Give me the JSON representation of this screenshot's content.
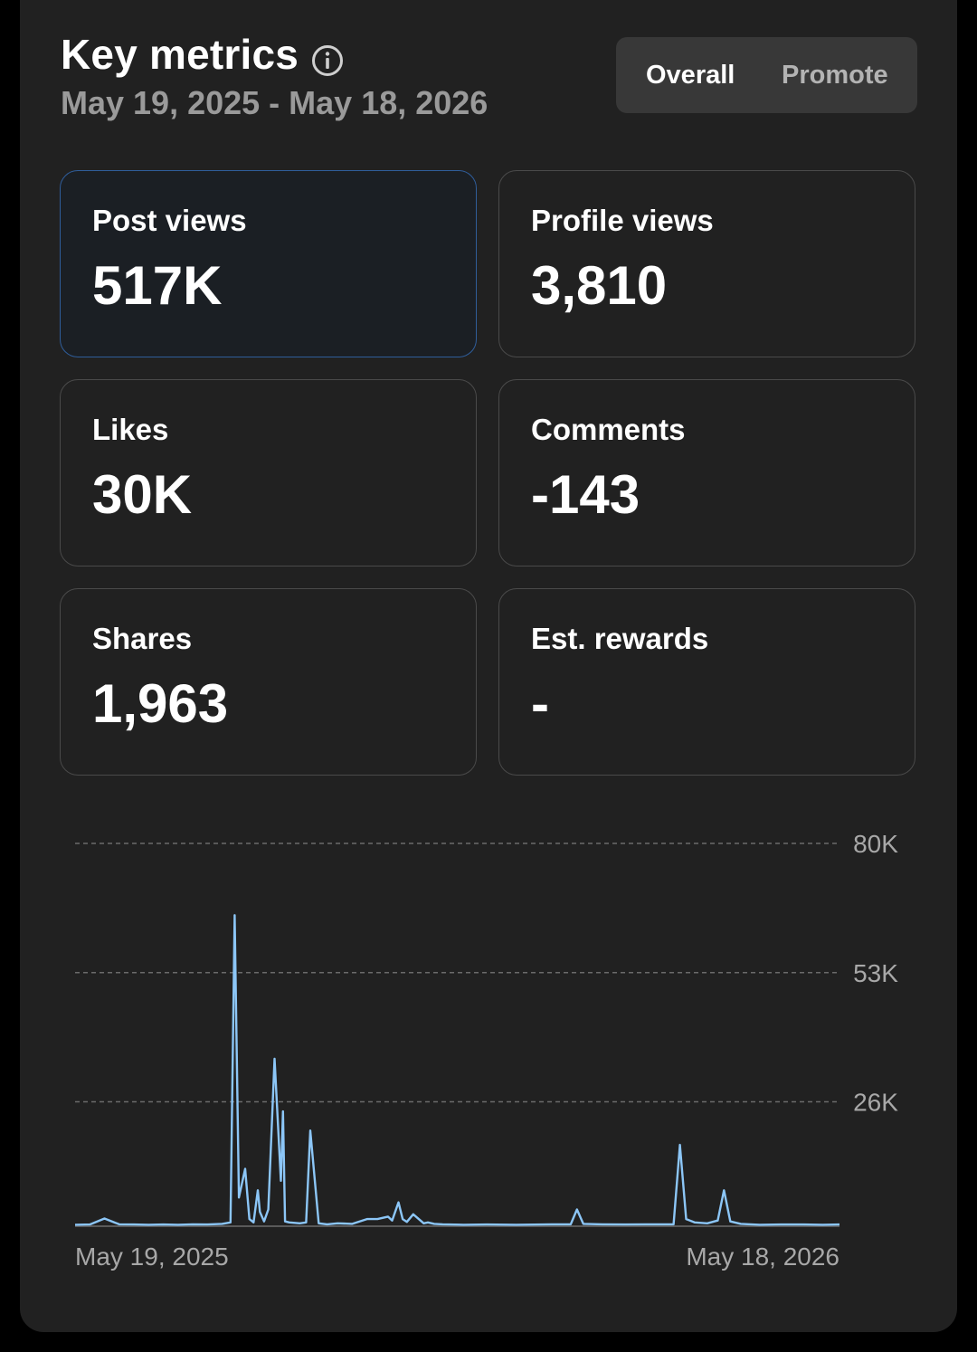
{
  "header": {
    "title": "Key metrics",
    "date_range": "May 19, 2025 - May 18, 2026"
  },
  "toggle": {
    "overall_label": "Overall",
    "promote_label": "Promote",
    "selected": "Overall"
  },
  "metrics": [
    {
      "label": "Post views",
      "value": "517K",
      "selected": true
    },
    {
      "label": "Profile views",
      "value": "3,810",
      "selected": false
    },
    {
      "label": "Likes",
      "value": "30K",
      "selected": false
    },
    {
      "label": "Comments",
      "value": "-143",
      "selected": false
    },
    {
      "label": "Shares",
      "value": "1,963",
      "selected": false
    },
    {
      "label": "Est. rewards",
      "value": "-",
      "selected": false
    }
  ],
  "colors": {
    "background": "#212121",
    "line": "#8cc6f7",
    "selected_border": "#2f5d9a",
    "muted_text": "#9a9a9a"
  },
  "chart_data": {
    "type": "line",
    "y_ticks": [
      "80K",
      "53K",
      "26K"
    ],
    "x_ticks": [
      "May 19, 2025",
      "May 18, 2026"
    ],
    "ylim": [
      0,
      80000
    ],
    "grid": true,
    "series": [
      {
        "x": [
          "2025-05-19",
          "2025-05-26",
          "2025-06-02",
          "2025-06-09",
          "2025-06-16",
          "2025-06-23",
          "2025-06-30",
          "2025-07-07",
          "2025-07-14",
          "2025-07-21",
          "2025-07-28",
          "2025-08-01",
          "2025-08-03",
          "2025-08-05",
          "2025-08-08",
          "2025-08-10",
          "2025-08-12",
          "2025-08-14",
          "2025-08-15",
          "2025-08-17",
          "2025-08-19",
          "2025-08-22",
          "2025-08-25",
          "2025-08-26",
          "2025-08-27",
          "2025-08-29",
          "2025-09-03",
          "2025-09-06",
          "2025-09-08",
          "2025-09-12",
          "2025-09-16",
          "2025-09-21",
          "2025-09-28",
          "2025-10-05",
          "2025-10-10",
          "2025-10-15",
          "2025-10-17",
          "2025-10-20",
          "2025-10-22",
          "2025-10-24",
          "2025-10-27",
          "2025-11-01",
          "2025-11-03",
          "2025-11-06",
          "2025-11-10",
          "2025-11-20",
          "2025-12-01",
          "2025-12-15",
          "2026-01-01",
          "2026-01-10",
          "2026-01-13",
          "2026-01-16",
          "2026-01-25",
          "2026-02-05",
          "2026-02-15",
          "2026-02-20",
          "2026-02-24",
          "2026-02-28",
          "2026-03-03",
          "2026-03-06",
          "2026-03-10",
          "2026-03-16",
          "2026-03-21",
          "2026-03-24",
          "2026-03-27",
          "2026-04-01",
          "2026-04-10",
          "2026-04-20",
          "2026-05-01",
          "2026-05-10",
          "2026-05-18"
        ],
        "y": [
          300,
          350,
          1600,
          400,
          350,
          300,
          350,
          300,
          400,
          350,
          500,
          800,
          65000,
          6000,
          12000,
          1500,
          800,
          7500,
          3000,
          1000,
          3500,
          35000,
          9500,
          24000,
          1000,
          800,
          600,
          800,
          20000,
          600,
          400,
          600,
          500,
          1500,
          1500,
          2000,
          1200,
          5000,
          1500,
          900,
          2500,
          600,
          800,
          500,
          400,
          300,
          350,
          300,
          400,
          400,
          3500,
          500,
          400,
          350,
          400,
          400,
          400,
          400,
          17000,
          1500,
          800,
          600,
          1200,
          7500,
          1000,
          500,
          300,
          350,
          350,
          300,
          350
        ]
      }
    ]
  }
}
